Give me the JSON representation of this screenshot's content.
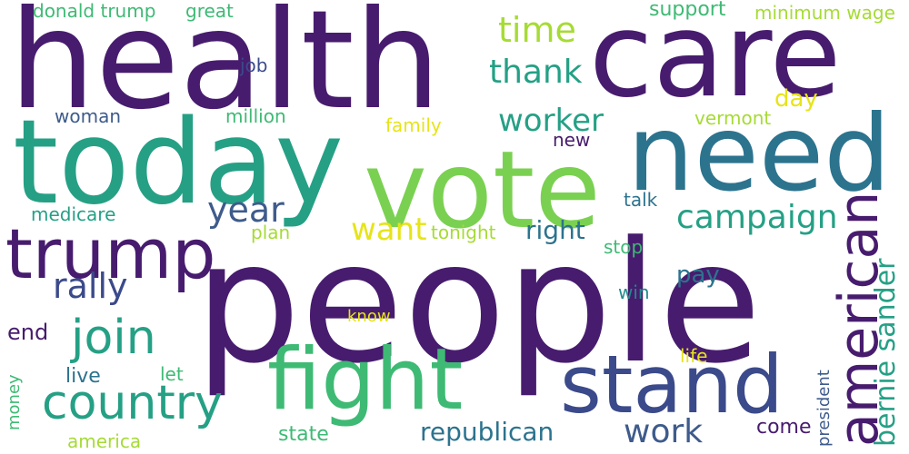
{
  "palette": {
    "dark_purple": "#471c6e",
    "indigo": "#3b4a8a",
    "slate_blue": "#3e5b8c",
    "blue_teal": "#2c738e",
    "teal": "#238a8d",
    "green_teal": "#25a085",
    "green": "#3eba74",
    "light_green": "#7ad151",
    "lime": "#a6db35",
    "yellow": "#e6e419"
  },
  "words": {
    "health": "health",
    "care": "care",
    "today": "today",
    "vote": "vote",
    "need": "need",
    "people": "people",
    "trump": "trump",
    "fight": "fight",
    "stand": "stand",
    "american": "american",
    "country": "country",
    "join": "join",
    "campaign": "campaign",
    "worker": "worker",
    "thank": "thank",
    "time": "time",
    "year": "year",
    "rally": "rally",
    "want": "want",
    "work": "work",
    "bernie_sander": "bernie sander",
    "republican": "republican",
    "right": "right",
    "support": "support",
    "minimum_wage": "minimum wage",
    "donald_trump": "donald trump",
    "great": "great",
    "job": "job",
    "woman": "woman",
    "million": "million",
    "family": "family",
    "new": "new",
    "day": "day",
    "vermont": "vermont",
    "medicare": "medicare",
    "plan": "plan",
    "tonight": "tonight",
    "talk": "talk",
    "stop": "stop",
    "pay": "pay",
    "win": "win",
    "end": "end",
    "know": "know",
    "live": "live",
    "let": "let",
    "life": "life",
    "president": "president",
    "money": "money",
    "america": "america",
    "state": "state",
    "come": "come"
  }
}
